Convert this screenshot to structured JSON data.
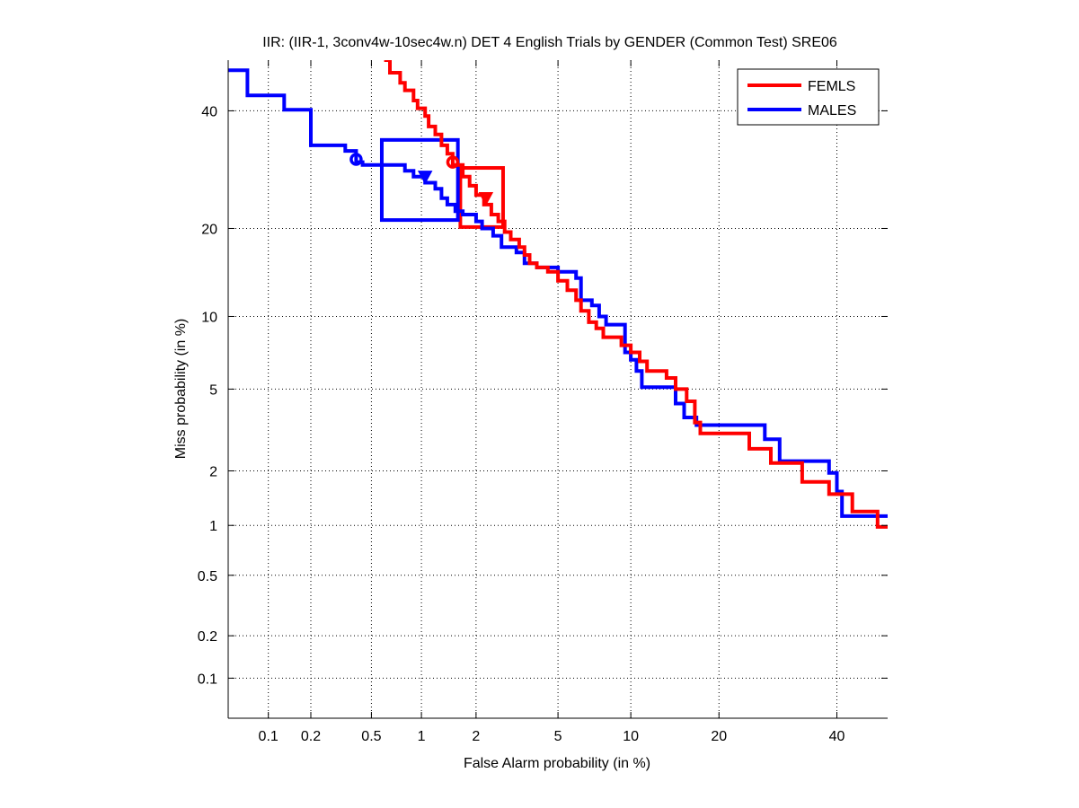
{
  "chart_data": {
    "type": "line",
    "title": "IIR: (IIR-1, 3conv4w-10sec4w.n) DET 4 English Trials by GENDER (Common Test) SRE06",
    "xlabel": "False Alarm probability (in %)",
    "ylabel": "Miss probability (in %)",
    "xscale": "normal-deviate",
    "yscale": "normal-deviate",
    "xlim": [
      0.05,
      50
    ],
    "ylim": [
      0.05,
      50
    ],
    "xticks": [
      0.1,
      0.2,
      0.5,
      1,
      2,
      5,
      10,
      20,
      40
    ],
    "xtick_labels": [
      "0.1",
      "0.2",
      "0.5",
      "1",
      "2",
      "5",
      "10",
      "20",
      "40"
    ],
    "yticks": [
      0.1,
      0.2,
      0.5,
      1,
      2,
      5,
      10,
      20,
      40
    ],
    "ytick_labels": [
      "0.1",
      "0.2",
      "0.5",
      "1",
      "2",
      "5",
      "10",
      "20",
      "40"
    ],
    "grid": true,
    "legend_position": "top-right",
    "series": [
      {
        "name": "FEMLS",
        "color": "#ff0000",
        "points": [
          [
            0.6,
            50
          ],
          [
            0.65,
            50
          ],
          [
            0.65,
            47.5
          ],
          [
            0.75,
            47.5
          ],
          [
            0.75,
            45.5
          ],
          [
            0.8,
            45.5
          ],
          [
            0.8,
            44
          ],
          [
            0.9,
            44
          ],
          [
            0.9,
            42
          ],
          [
            0.95,
            42
          ],
          [
            0.95,
            40.5
          ],
          [
            1.05,
            40.5
          ],
          [
            1.05,
            39
          ],
          [
            1.1,
            39
          ],
          [
            1.1,
            37
          ],
          [
            1.2,
            37
          ],
          [
            1.2,
            35.5
          ],
          [
            1.3,
            35.5
          ],
          [
            1.3,
            33.5
          ],
          [
            1.4,
            33.5
          ],
          [
            1.4,
            32
          ],
          [
            1.5,
            32
          ],
          [
            1.5,
            30
          ],
          [
            1.7,
            30
          ],
          [
            1.7,
            28
          ],
          [
            1.85,
            28
          ],
          [
            1.85,
            26.5
          ],
          [
            2.0,
            26.5
          ],
          [
            2.0,
            25
          ],
          [
            2.2,
            25
          ],
          [
            2.2,
            23.5
          ],
          [
            2.4,
            23.5
          ],
          [
            2.4,
            22
          ],
          [
            2.6,
            22
          ],
          [
            2.6,
            21
          ],
          [
            2.8,
            21
          ],
          [
            2.8,
            19.5
          ],
          [
            3.0,
            19.5
          ],
          [
            3.0,
            18.5
          ],
          [
            3.3,
            18.5
          ],
          [
            3.3,
            17.5
          ],
          [
            3.5,
            17.5
          ],
          [
            3.5,
            16.5
          ],
          [
            3.7,
            16.5
          ],
          [
            3.7,
            15.5
          ],
          [
            4.0,
            15.5
          ],
          [
            4.0,
            15
          ],
          [
            4.5,
            15
          ],
          [
            4.5,
            14.5
          ],
          [
            5.0,
            14.5
          ],
          [
            5.0,
            13.5
          ],
          [
            5.5,
            13.5
          ],
          [
            5.5,
            12.5
          ],
          [
            6.0,
            12.5
          ],
          [
            6.0,
            11.5
          ],
          [
            6.3,
            11.5
          ],
          [
            6.3,
            10.5
          ],
          [
            6.8,
            10.5
          ],
          [
            6.8,
            9.5
          ],
          [
            7.3,
            9.5
          ],
          [
            7.3,
            9
          ],
          [
            7.8,
            9
          ],
          [
            7.8,
            8.3
          ],
          [
            9.2,
            8.3
          ],
          [
            9.2,
            7.7
          ],
          [
            10.0,
            7.7
          ],
          [
            10.0,
            7.2
          ],
          [
            10.8,
            7.2
          ],
          [
            10.8,
            6.6
          ],
          [
            11.5,
            6.6
          ],
          [
            11.5,
            6.0
          ],
          [
            13.5,
            6.0
          ],
          [
            13.5,
            5.6
          ],
          [
            14.5,
            5.6
          ],
          [
            14.5,
            5.0
          ],
          [
            15.8,
            5.0
          ],
          [
            15.8,
            4.4
          ],
          [
            16.8,
            4.4
          ],
          [
            16.8,
            3.5
          ],
          [
            17.5,
            3.5
          ],
          [
            17.5,
            3.1
          ],
          [
            24.5,
            3.1
          ],
          [
            24.5,
            2.6
          ],
          [
            28,
            2.6
          ],
          [
            28,
            2.2
          ],
          [
            33.5,
            2.2
          ],
          [
            33.5,
            1.75
          ],
          [
            38.5,
            1.75
          ],
          [
            38.5,
            1.5
          ],
          [
            43,
            1.5
          ],
          [
            43,
            1.2
          ],
          [
            48,
            1.2
          ],
          [
            48,
            0.98
          ],
          [
            50,
            0.98
          ]
        ],
        "markers": [
          {
            "type": "circle",
            "label": "actual decision point",
            "x": 1.5,
            "y": 30.5
          },
          {
            "type": "triangle-down",
            "label": "min DCF point",
            "x": 2.25,
            "y": 24.5
          }
        ],
        "confidence_box": {
          "x": [
            1.65,
            2.75
          ],
          "y": [
            20.2,
            29.5
          ]
        }
      },
      {
        "name": "MALES",
        "color": "#0000ff",
        "points": [
          [
            0.05,
            48
          ],
          [
            0.07,
            48
          ],
          [
            0.07,
            43
          ],
          [
            0.13,
            43
          ],
          [
            0.13,
            40.2
          ],
          [
            0.2,
            40.2
          ],
          [
            0.2,
            33.5
          ],
          [
            0.34,
            33.5
          ],
          [
            0.34,
            32.5
          ],
          [
            0.4,
            32.5
          ],
          [
            0.4,
            30.5
          ],
          [
            0.44,
            30.5
          ],
          [
            0.44,
            30
          ],
          [
            0.8,
            30
          ],
          [
            0.8,
            29
          ],
          [
            0.9,
            29
          ],
          [
            0.9,
            28
          ],
          [
            1.05,
            28
          ],
          [
            1.05,
            27
          ],
          [
            1.2,
            27
          ],
          [
            1.2,
            26
          ],
          [
            1.3,
            26
          ],
          [
            1.3,
            24.5
          ],
          [
            1.4,
            24.5
          ],
          [
            1.4,
            23.5
          ],
          [
            1.55,
            23.5
          ],
          [
            1.55,
            22.5
          ],
          [
            1.7,
            22.5
          ],
          [
            1.7,
            22
          ],
          [
            2.0,
            22
          ],
          [
            2.0,
            21
          ],
          [
            2.15,
            21
          ],
          [
            2.15,
            20
          ],
          [
            2.45,
            20
          ],
          [
            2.45,
            19
          ],
          [
            2.7,
            19
          ],
          [
            2.7,
            17.5
          ],
          [
            3.2,
            17.5
          ],
          [
            3.2,
            16.8
          ],
          [
            3.5,
            16.8
          ],
          [
            3.5,
            15.5
          ],
          [
            4.0,
            15.5
          ],
          [
            4.0,
            15
          ],
          [
            5.0,
            15
          ],
          [
            5.0,
            14.5
          ],
          [
            6.0,
            14.5
          ],
          [
            6.0,
            13.8
          ],
          [
            6.3,
            13.8
          ],
          [
            6.3,
            11.5
          ],
          [
            7.0,
            11.5
          ],
          [
            7.0,
            11
          ],
          [
            7.5,
            11
          ],
          [
            7.5,
            10
          ],
          [
            8.0,
            10
          ],
          [
            8.0,
            9.3
          ],
          [
            9.5,
            9.3
          ],
          [
            9.5,
            7.2
          ],
          [
            10.0,
            7.2
          ],
          [
            10.0,
            6.7
          ],
          [
            10.5,
            6.7
          ],
          [
            10.5,
            6.0
          ],
          [
            11.0,
            6.0
          ],
          [
            11.0,
            5.1
          ],
          [
            14.5,
            5.1
          ],
          [
            14.5,
            4.3
          ],
          [
            15.5,
            4.3
          ],
          [
            15.5,
            3.7
          ],
          [
            17,
            3.7
          ],
          [
            17,
            3.4
          ],
          [
            27,
            3.4
          ],
          [
            27,
            2.9
          ],
          [
            29.5,
            2.9
          ],
          [
            29.5,
            2.25
          ],
          [
            38.5,
            2.25
          ],
          [
            38.5,
            1.95
          ],
          [
            40,
            1.95
          ],
          [
            40,
            1.55
          ],
          [
            41,
            1.55
          ],
          [
            41,
            1.13
          ],
          [
            50,
            1.13
          ]
        ],
        "markers": [
          {
            "type": "circle",
            "label": "actual decision point",
            "x": 0.4,
            "y": 31
          },
          {
            "type": "triangle-down",
            "label": "min DCF point",
            "x": 1.05,
            "y": 28
          }
        ],
        "confidence_box": {
          "x": [
            0.58,
            1.6
          ],
          "y": [
            21.2,
            34.5
          ]
        }
      }
    ]
  }
}
